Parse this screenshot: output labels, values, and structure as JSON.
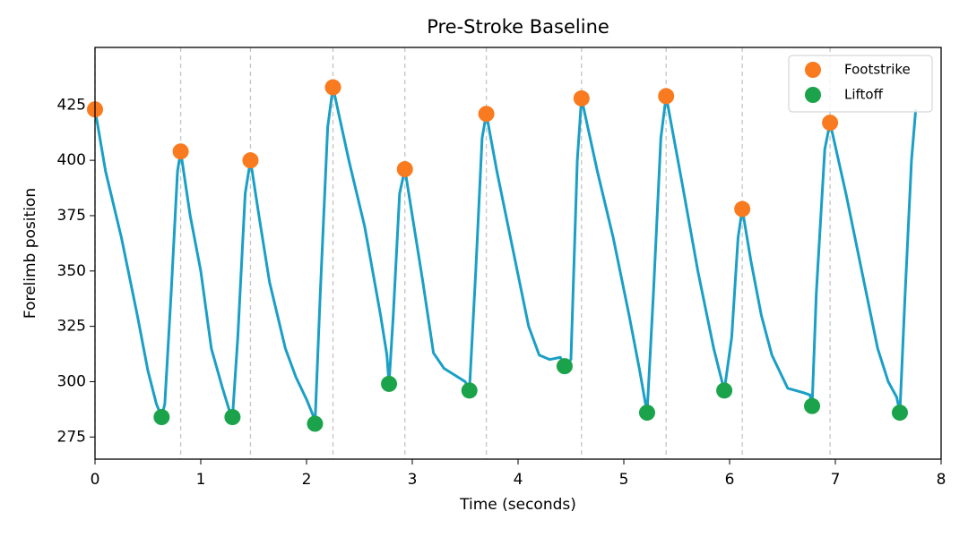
{
  "chart_data": {
    "type": "line",
    "title": "Pre-Stroke Baseline",
    "xlabel": "Time (seconds)",
    "ylabel": "Forelimb position",
    "xlim": [
      0,
      8
    ],
    "ylim": [
      265,
      451
    ],
    "xticks": [
      0,
      1,
      2,
      3,
      4,
      5,
      6,
      7,
      8
    ],
    "yticks": [
      275,
      300,
      325,
      350,
      375,
      400,
      425
    ],
    "color": "#1a9fc6",
    "x": [
      0,
      0.1,
      0.25,
      0.4,
      0.5,
      0.58,
      0.63,
      0.66,
      0.72,
      0.78,
      0.81,
      0.9,
      1.0,
      1.1,
      1.2,
      1.27,
      1.3,
      1.35,
      1.42,
      1.47,
      1.55,
      1.65,
      1.8,
      1.9,
      2.0,
      2.06,
      2.08,
      2.13,
      2.2,
      2.25,
      2.4,
      2.55,
      2.7,
      2.76,
      2.78,
      2.82,
      2.88,
      2.93,
      3.0,
      3.1,
      3.2,
      3.3,
      3.4,
      3.5,
      3.54,
      3.6,
      3.66,
      3.7,
      3.8,
      3.95,
      4.1,
      4.2,
      4.3,
      4.4,
      4.44,
      4.5,
      4.56,
      4.6,
      4.75,
      4.9,
      5.05,
      5.15,
      5.22,
      5.28,
      5.35,
      5.4,
      5.55,
      5.7,
      5.85,
      5.95,
      6.02,
      6.08,
      6.12,
      6.2,
      6.3,
      6.4,
      6.55,
      6.7,
      6.76,
      6.78,
      6.82,
      6.9,
      6.95,
      7.1,
      7.25,
      7.4,
      7.5,
      7.58,
      7.61,
      7.66,
      7.72,
      7.76
    ],
    "y": [
      423,
      395,
      365,
      330,
      305,
      290,
      284,
      290,
      340,
      395,
      404,
      375,
      350,
      315,
      298,
      287,
      284,
      320,
      385,
      400,
      375,
      345,
      315,
      302,
      292,
      285,
      281,
      340,
      415,
      433,
      400,
      370,
      330,
      312,
      299,
      330,
      385,
      396,
      375,
      345,
      313,
      306,
      303,
      300,
      296,
      350,
      410,
      421,
      395,
      360,
      325,
      312,
      310,
      311,
      307,
      310,
      400,
      428,
      395,
      365,
      330,
      305,
      286,
      340,
      410,
      429,
      390,
      350,
      315,
      296,
      320,
      365,
      378,
      355,
      330,
      312,
      297,
      295,
      294,
      289,
      340,
      405,
      417,
      385,
      350,
      315,
      300,
      293,
      286,
      340,
      400,
      423
    ],
    "markers": [
      {
        "name": "Footstrike",
        "color": "#f97a1f",
        "x": [
          0,
          0.81,
          1.47,
          2.25,
          2.93,
          3.7,
          4.6,
          5.4,
          6.12,
          6.95
        ],
        "y": [
          423,
          404,
          400,
          433,
          396,
          421,
          428,
          429,
          378,
          417
        ]
      },
      {
        "name": "Liftoff",
        "color": "#1aa34a",
        "x": [
          0.63,
          1.3,
          2.08,
          2.78,
          3.54,
          4.44,
          5.22,
          5.95,
          6.78,
          7.61
        ],
        "y": [
          284,
          284,
          281,
          299,
          296,
          307,
          286,
          296,
          289,
          286
        ]
      }
    ],
    "vlines": true,
    "legend": "upper right"
  }
}
